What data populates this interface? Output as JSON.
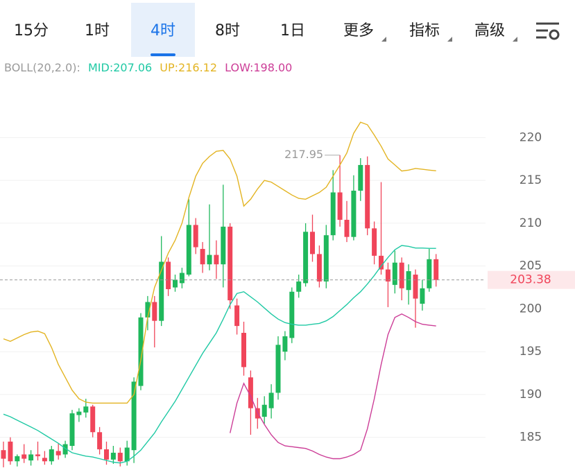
{
  "tabs": [
    "15分",
    "1时",
    "4时",
    "8时",
    "1日",
    "更多",
    "指标",
    "高级"
  ],
  "active_tab": 2,
  "chart_data": {
    "type": "candlestick",
    "indicator": "BOLL(20,2.0):",
    "up_color": "#1fb85c",
    "down_color": "#f0455a",
    "ylim": [
      180.6,
      226.35
    ],
    "yticks": [
      185,
      190,
      195,
      200,
      205,
      210,
      215,
      220
    ],
    "grid": true,
    "max_high": 217.95,
    "last_price": 203.38,
    "candles": {
      "open": [
        183.5,
        184.5,
        182.2,
        183,
        182.3,
        183,
        182.6,
        182.2,
        183.4,
        183,
        184,
        187.6,
        187.9,
        188.6,
        185.6,
        183.6,
        182.4,
        183.2,
        182.2,
        183.5,
        191,
        199,
        200.8,
        198.6,
        205.5,
        202.5,
        203,
        204,
        209.8,
        207,
        205.2,
        206.3,
        205.2,
        209.6,
        200.4,
        197.2,
        192,
        188.4,
        187.4,
        188.4,
        190.2,
        195,
        196.6,
        202,
        203,
        209,
        206.4,
        203.2,
        208.6,
        213.6,
        210.4,
        208.4,
        213.8,
        216.8,
        209.4,
        206.2,
        204.6,
        202.8,
        205.4,
        202.2,
        204,
        200.6,
        202.4,
        205.8
      ],
      "high": [
        184.5,
        185,
        183,
        184.2,
        183.5,
        184.5,
        183.4,
        184,
        184.3,
        184.6,
        188.2,
        188.4,
        189.5,
        188.8,
        186.2,
        184.5,
        184,
        183.8,
        184.6,
        192,
        199.5,
        201.5,
        201.5,
        208.5,
        206,
        204,
        204.8,
        212.8,
        210.6,
        207.8,
        212.2,
        208,
        214.5,
        210,
        201.2,
        198.5,
        192.8,
        189.6,
        189.8,
        191.2,
        196.8,
        197.4,
        202.5,
        204,
        210,
        211,
        207.4,
        209.8,
        216.2,
        217.95,
        212.6,
        215.6,
        217.6,
        217.8,
        210.2,
        214.8,
        205.4,
        206.8,
        206,
        205.2,
        204.6,
        203.4,
        207,
        206.4
      ],
      "low": [
        181.5,
        181.8,
        181.6,
        182,
        181.7,
        182.3,
        181.8,
        181.8,
        182.4,
        182.6,
        183.5,
        186.8,
        187.3,
        185,
        183,
        181.8,
        181.9,
        181.6,
        181.7,
        182,
        190.5,
        197.5,
        195.5,
        198,
        201.5,
        202,
        202.4,
        203.8,
        206.4,
        204.2,
        204.5,
        203.5,
        202.5,
        200,
        197,
        192.2,
        185.3,
        186,
        186.6,
        187.2,
        189.4,
        194,
        196,
        201.3,
        202.6,
        205.5,
        202.5,
        202.4,
        208,
        209.6,
        207.8,
        208,
        212.6,
        208.6,
        205.2,
        204,
        200.2,
        201.8,
        201,
        200.5,
        197.8,
        199.8,
        202,
        202.6
      ],
      "close": [
        182.5,
        182.2,
        182.8,
        182.5,
        183,
        182.8,
        182.2,
        183.6,
        182.9,
        184.2,
        187.8,
        188,
        188.6,
        185.6,
        183.6,
        182.4,
        183.2,
        182.2,
        183.8,
        191.5,
        199,
        200.8,
        198.6,
        205.5,
        202.3,
        203.4,
        204.2,
        209.8,
        207.2,
        205.2,
        206.3,
        205.2,
        209.6,
        201,
        198,
        193.2,
        188.4,
        187.2,
        188.8,
        190.2,
        195.8,
        196.8,
        202,
        203.2,
        209,
        206.4,
        203.2,
        208.6,
        213.6,
        210.4,
        208.4,
        213.8,
        216.8,
        209.4,
        206.2,
        204.6,
        203.2,
        205.4,
        202.4,
        204.4,
        201.2,
        202.4,
        205.8,
        203.38
      ]
    },
    "series": [
      {
        "name": "MID:",
        "color": "#1fc9a4",
        "legend_value": 207.06,
        "values": [
          187.7,
          187.4,
          187,
          186.6,
          186.2,
          185.8,
          185.3,
          184.8,
          184.3,
          183.7,
          183.2,
          183,
          182.8,
          182.7,
          182.5,
          182.3,
          182.1,
          182,
          182.2,
          182.8,
          183.5,
          184.5,
          185.5,
          186.8,
          188,
          189.2,
          190.6,
          192,
          193.4,
          194.8,
          196,
          197.2,
          198.8,
          200.5,
          201.8,
          202,
          201.4,
          200.8,
          200.1,
          199.4,
          198.8,
          198.4,
          198.2,
          198.1,
          198.1,
          198.2,
          198.3,
          198.6,
          199.1,
          199.8,
          200.5,
          201.3,
          202,
          202.9,
          203.9,
          205,
          206,
          206.9,
          207.4,
          207.3,
          207.1,
          207.1,
          207.06,
          207.06
        ]
      },
      {
        "name": "UP:",
        "color": "#e3b422",
        "legend_value": 216.12,
        "values": [
          196.5,
          196.2,
          196.6,
          197,
          197.3,
          197.4,
          197.1,
          195.5,
          193.5,
          192,
          190.5,
          189.5,
          189.1,
          189,
          189,
          189,
          189,
          189,
          189,
          190,
          194,
          199,
          202.5,
          204.5,
          206.5,
          208,
          210,
          213,
          215.5,
          217,
          217.8,
          218.4,
          218.5,
          217.5,
          215.5,
          212,
          212.8,
          214,
          215,
          214.8,
          214.3,
          213.8,
          213.3,
          212.9,
          212.8,
          213.2,
          213.6,
          214.2,
          215.5,
          216.8,
          218.2,
          220.5,
          221.8,
          221.5,
          220.3,
          219,
          217.5,
          216.8,
          216.1,
          216.2,
          216.4,
          216.3,
          216.2,
          216.12
        ]
      },
      {
        "name": "LOW:",
        "color": "#cc3d97",
        "legend_value": 198,
        "legend_value_label": "198.00",
        "values": [
          null,
          null,
          null,
          null,
          null,
          null,
          null,
          null,
          null,
          null,
          null,
          null,
          null,
          null,
          null,
          null,
          null,
          null,
          null,
          null,
          null,
          null,
          null,
          null,
          null,
          null,
          null,
          null,
          null,
          null,
          null,
          null,
          null,
          185.5,
          189,
          191.3,
          189.8,
          187.9,
          186.5,
          185.3,
          184.4,
          184,
          183.9,
          183.8,
          183.7,
          183.4,
          183,
          182.7,
          182.5,
          182.5,
          182.7,
          183,
          183.5,
          186,
          189.5,
          193.5,
          197,
          199,
          199.4,
          199,
          198.5,
          198.2,
          198.1,
          198
        ]
      }
    ]
  }
}
